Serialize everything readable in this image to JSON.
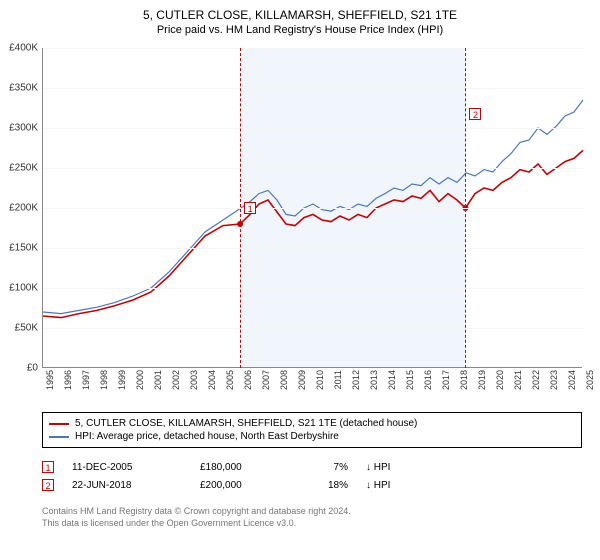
{
  "title": "5, CUTLER CLOSE, KILLAMARSH, SHEFFIELD, S21 1TE",
  "subtitle": "Price paid vs. HM Land Registry's House Price Index (HPI)",
  "chart": {
    "type": "line",
    "background_color": "#ffffff",
    "grid_color": "#f5f5f5",
    "axis_color": "#888888",
    "xlim": [
      1995,
      2025
    ],
    "ylim": [
      0,
      400000
    ],
    "ytick_step": 50000,
    "yticks": [
      "£0",
      "£50K",
      "£100K",
      "£150K",
      "£200K",
      "£250K",
      "£300K",
      "£350K",
      "£400K"
    ],
    "xticks": [
      1995,
      1996,
      1997,
      1998,
      1999,
      2000,
      2001,
      2002,
      2003,
      2004,
      2005,
      2006,
      2007,
      2008,
      2009,
      2010,
      2011,
      2012,
      2013,
      2014,
      2015,
      2016,
      2017,
      2018,
      2019,
      2020,
      2021,
      2022,
      2023,
      2024,
      2025
    ],
    "shaded_region": {
      "from": 2005.95,
      "to": 2018.47,
      "color": "rgba(100,150,230,0.09)"
    },
    "markers": [
      {
        "id": "1",
        "x": 2005.95,
        "y": 180000,
        "label_y_offset": -22
      },
      {
        "id": "2",
        "x": 2018.47,
        "y": 200000,
        "label_y_offset": -100
      }
    ],
    "series": [
      {
        "label": "5, CUTLER CLOSE, KILLAMARSH, SHEFFIELD, S21 1TE (detached house)",
        "color": "#cc0000",
        "line_width": 1.6,
        "points": [
          [
            1995,
            65000
          ],
          [
            1996,
            63000
          ],
          [
            1997,
            68000
          ],
          [
            1998,
            72000
          ],
          [
            1999,
            78000
          ],
          [
            2000,
            85000
          ],
          [
            2001,
            95000
          ],
          [
            2002,
            115000
          ],
          [
            2003,
            140000
          ],
          [
            2004,
            165000
          ],
          [
            2005,
            178000
          ],
          [
            2005.95,
            180000
          ],
          [
            2006.5,
            192000
          ],
          [
            2007,
            205000
          ],
          [
            2007.5,
            210000
          ],
          [
            2008,
            195000
          ],
          [
            2008.5,
            180000
          ],
          [
            2009,
            178000
          ],
          [
            2009.5,
            188000
          ],
          [
            2010,
            192000
          ],
          [
            2010.5,
            185000
          ],
          [
            2011,
            183000
          ],
          [
            2011.5,
            190000
          ],
          [
            2012,
            185000
          ],
          [
            2012.5,
            192000
          ],
          [
            2013,
            188000
          ],
          [
            2013.5,
            200000
          ],
          [
            2014,
            205000
          ],
          [
            2014.5,
            210000
          ],
          [
            2015,
            208000
          ],
          [
            2015.5,
            215000
          ],
          [
            2016,
            212000
          ],
          [
            2016.5,
            222000
          ],
          [
            2017,
            208000
          ],
          [
            2017.5,
            218000
          ],
          [
            2018,
            210000
          ],
          [
            2018.47,
            200000
          ],
          [
            2019,
            218000
          ],
          [
            2019.5,
            225000
          ],
          [
            2020,
            222000
          ],
          [
            2020.5,
            232000
          ],
          [
            2021,
            238000
          ],
          [
            2021.5,
            248000
          ],
          [
            2022,
            245000
          ],
          [
            2022.5,
            255000
          ],
          [
            2023,
            242000
          ],
          [
            2023.5,
            250000
          ],
          [
            2024,
            258000
          ],
          [
            2024.5,
            262000
          ],
          [
            2025,
            272000
          ]
        ]
      },
      {
        "label": "HPI: Average price, detached house, North East Derbyshire",
        "color": "#4a76c7",
        "line_width": 1.2,
        "points": [
          [
            1995,
            70000
          ],
          [
            1996,
            68000
          ],
          [
            1997,
            72000
          ],
          [
            1998,
            76000
          ],
          [
            1999,
            82000
          ],
          [
            2000,
            90000
          ],
          [
            2001,
            100000
          ],
          [
            2002,
            120000
          ],
          [
            2003,
            145000
          ],
          [
            2004,
            170000
          ],
          [
            2005,
            185000
          ],
          [
            2006,
            200000
          ],
          [
            2006.5,
            208000
          ],
          [
            2007,
            218000
          ],
          [
            2007.5,
            222000
          ],
          [
            2008,
            210000
          ],
          [
            2008.5,
            192000
          ],
          [
            2009,
            190000
          ],
          [
            2009.5,
            200000
          ],
          [
            2010,
            205000
          ],
          [
            2010.5,
            198000
          ],
          [
            2011,
            196000
          ],
          [
            2011.5,
            202000
          ],
          [
            2012,
            198000
          ],
          [
            2012.5,
            205000
          ],
          [
            2013,
            202000
          ],
          [
            2013.5,
            212000
          ],
          [
            2014,
            218000
          ],
          [
            2014.5,
            225000
          ],
          [
            2015,
            222000
          ],
          [
            2015.5,
            230000
          ],
          [
            2016,
            228000
          ],
          [
            2016.5,
            238000
          ],
          [
            2017,
            230000
          ],
          [
            2017.5,
            238000
          ],
          [
            2018,
            232000
          ],
          [
            2018.5,
            244000
          ],
          [
            2019,
            240000
          ],
          [
            2019.5,
            248000
          ],
          [
            2020,
            245000
          ],
          [
            2020.5,
            258000
          ],
          [
            2021,
            268000
          ],
          [
            2021.5,
            282000
          ],
          [
            2022,
            285000
          ],
          [
            2022.5,
            300000
          ],
          [
            2023,
            292000
          ],
          [
            2023.5,
            302000
          ],
          [
            2024,
            315000
          ],
          [
            2024.5,
            320000
          ],
          [
            2025,
            335000
          ]
        ]
      }
    ]
  },
  "legend": {
    "items": [
      {
        "color": "#cc0000",
        "label": "5, CUTLER CLOSE, KILLAMARSH, SHEFFIELD, S21 1TE (detached house)"
      },
      {
        "color": "#4a76c7",
        "label": "HPI: Average price, detached house, North East Derbyshire"
      }
    ]
  },
  "transactions": [
    {
      "id": "1",
      "date": "11-DEC-2005",
      "price": "£180,000",
      "pct": "7%",
      "arrow_text": "↓ HPI"
    },
    {
      "id": "2",
      "date": "22-JUN-2018",
      "price": "£200,000",
      "pct": "18%",
      "arrow_text": "↓ HPI"
    }
  ],
  "footer": {
    "line1": "Contains HM Land Registry data © Crown copyright and database right 2024.",
    "line2": "This data is licensed under the Open Government Licence v3.0."
  }
}
